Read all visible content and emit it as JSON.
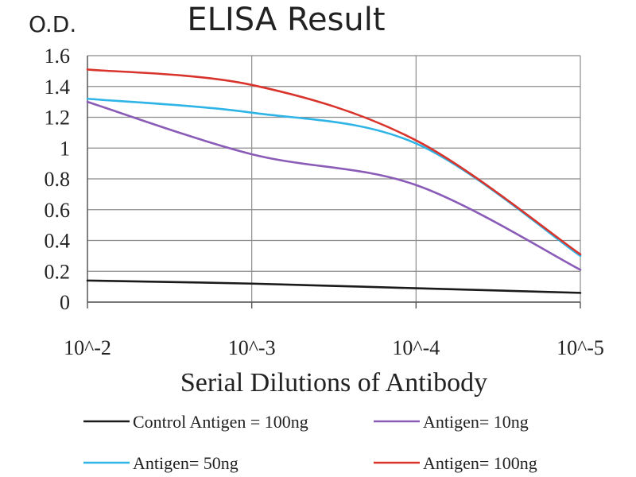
{
  "chart_data": {
    "type": "line",
    "title": "ELISA Result",
    "ylabel": "O.D.",
    "xlabel": "Serial Dilutions of Antibody",
    "categories": [
      "10^-2",
      "10^-3",
      "10^-4",
      "10^-5"
    ],
    "ylim": [
      0,
      1.6
    ],
    "yticks": [
      "0",
      "0.2",
      "0.4",
      "0.6",
      "0.8",
      "1",
      "1.2",
      "1.4",
      "1.6"
    ],
    "grid": true,
    "legend_position": "bottom",
    "series": [
      {
        "name": "Control Antigen = 100ng",
        "color": "#1a1a1a",
        "values": [
          0.14,
          0.12,
          0.09,
          0.06
        ]
      },
      {
        "name": "Antigen= 10ng",
        "color": "#8a5cb8",
        "values": [
          1.3,
          0.96,
          0.76,
          0.21
        ]
      },
      {
        "name": "Antigen= 50ng",
        "color": "#2eb4e6",
        "values": [
          1.32,
          1.23,
          1.03,
          0.3
        ]
      },
      {
        "name": "Antigen= 100ng",
        "color": "#d8342c",
        "values": [
          1.51,
          1.41,
          1.05,
          0.31
        ]
      }
    ]
  }
}
